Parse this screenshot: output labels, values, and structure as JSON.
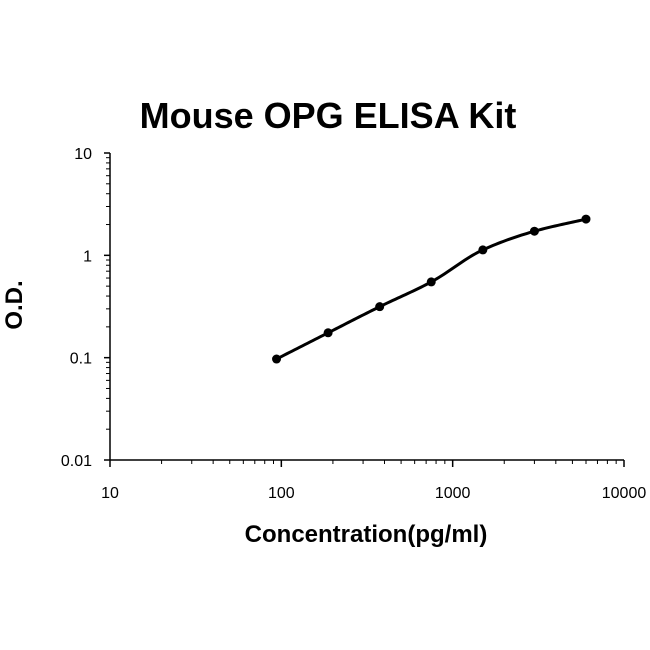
{
  "chart_data": {
    "type": "scatter",
    "title": "Mouse OPG ELISA Kit",
    "xlabel": "Concentration(pg/ml)",
    "ylabel": "O.D.",
    "x_scale": "log",
    "y_scale": "log",
    "xlim": [
      10,
      10000
    ],
    "ylim": [
      0.01,
      10
    ],
    "x_ticks": [
      "10",
      "100",
      "1000",
      "10000"
    ],
    "y_ticks": [
      "0.01",
      "0.1",
      "1",
      "10"
    ],
    "grid": false,
    "legend": "none",
    "series": [
      {
        "x": [
          93.75,
          187.5,
          375,
          750,
          1500,
          3000,
          6000
        ],
        "y": [
          0.097,
          0.175,
          0.315,
          0.55,
          1.13,
          1.72,
          2.26
        ]
      }
    ],
    "curve": {
      "type": "fitted",
      "x": [
        93.75,
        6000
      ],
      "color": "#000000"
    }
  }
}
